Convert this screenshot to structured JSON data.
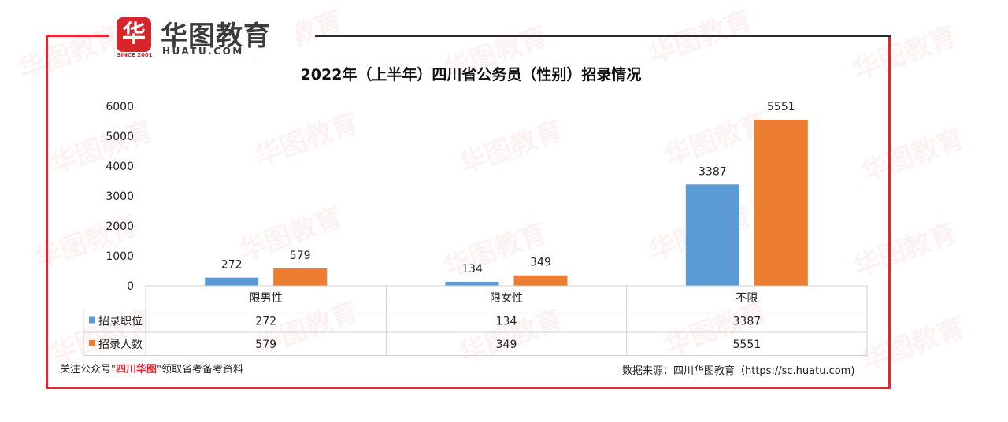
{
  "brand": {
    "logo_mark": "华",
    "name_cn": "华图教育",
    "name_en": "HUATU.COM",
    "since": "SINCE 2001"
  },
  "chart_data": {
    "type": "bar",
    "title": "2022年（上半年）四川省公务员（性别）招录情况",
    "categories": [
      "限男性",
      "限女性",
      "不限"
    ],
    "series": [
      {
        "name": "招录职位",
        "color": "#5b9bd5",
        "values": [
          272,
          134,
          3387
        ]
      },
      {
        "name": "招录人数",
        "color": "#ed7d31",
        "values": [
          579,
          349,
          5551
        ]
      }
    ],
    "ylim": [
      0,
      6000
    ],
    "yticks": [
      0,
      1000,
      2000,
      3000,
      4000,
      5000,
      6000
    ],
    "data_table": true
  },
  "footer": {
    "left_prefix": "关注公众号\"",
    "left_highlight": "四川华图",
    "left_suffix": "\"领取省考备考资料",
    "right": "数据来源：四川华图教育（https://sc.huatu.com)"
  },
  "watermark_text": "华图教育"
}
